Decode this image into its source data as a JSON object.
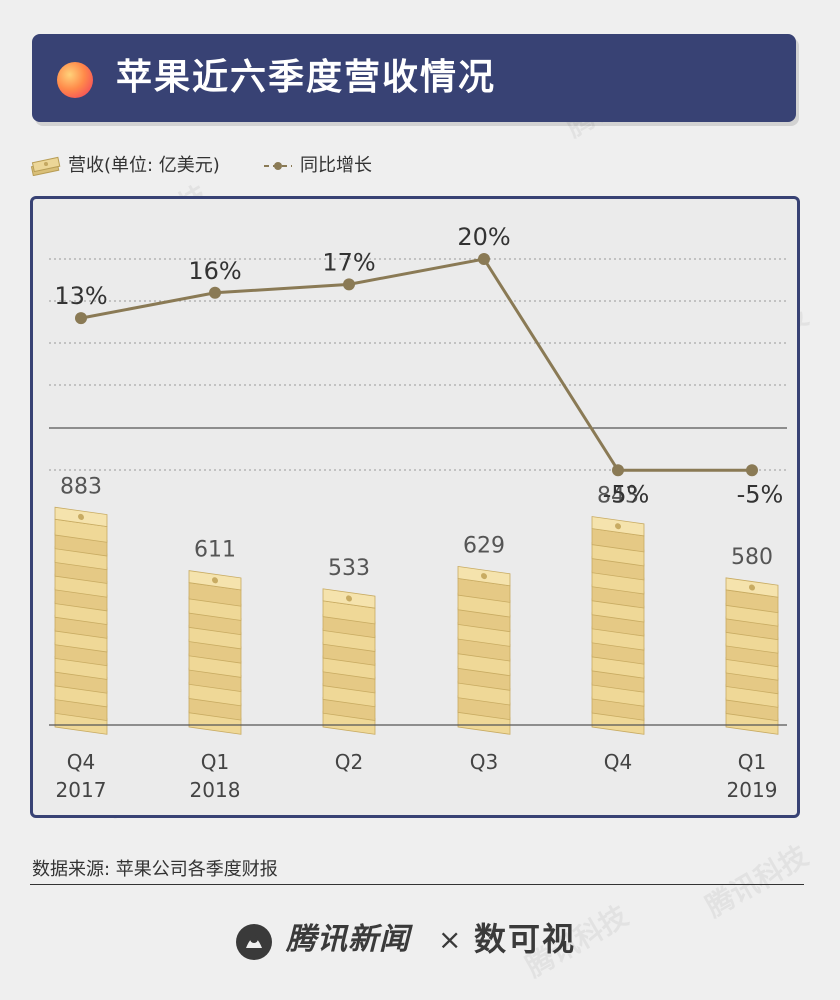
{
  "header": {
    "title": "苹果近六季度营收情况"
  },
  "legend": {
    "revenue_label": "营收(单位: 亿美元)",
    "growth_label": "同比增长"
  },
  "colors": {
    "title_bg": "#384274",
    "line": "#8a7a55",
    "money": "#e8d08c",
    "panel_border": "#384274"
  },
  "chart_data": {
    "type": "bar+line",
    "categories": [
      [
        "Q4",
        "2017"
      ],
      [
        "Q1",
        "2018"
      ],
      [
        "Q2",
        ""
      ],
      [
        "Q3",
        ""
      ],
      [
        "Q4",
        ""
      ],
      [
        "Q1",
        "2019"
      ]
    ],
    "series": [
      {
        "name": "营收(单位: 亿美元)",
        "type": "bar",
        "values": [
          883,
          611,
          533,
          629,
          843,
          580
        ]
      },
      {
        "name": "同比增长",
        "type": "line",
        "values": [
          13,
          16,
          17,
          20,
          -5,
          -5
        ],
        "unit": "%"
      }
    ]
  },
  "source": {
    "text": "数据来源: 苹果公司各季度财报"
  },
  "footer": {
    "brand1": "腾讯新闻",
    "separator": "×",
    "brand2": "数可视"
  },
  "watermark": {
    "text": "腾讯科技"
  }
}
